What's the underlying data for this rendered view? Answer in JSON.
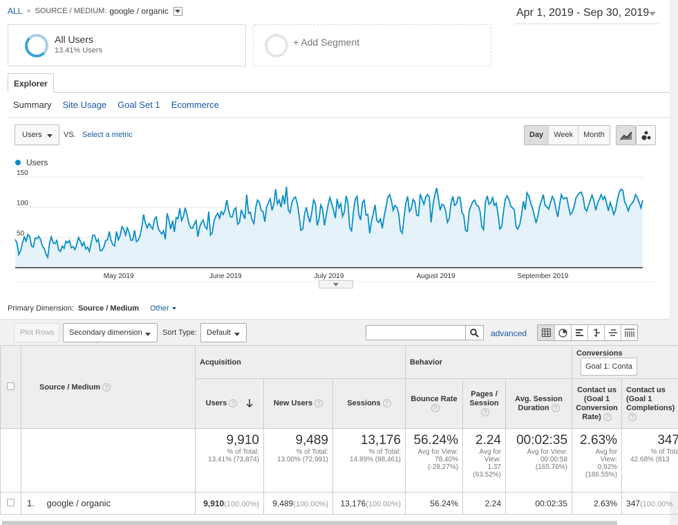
{
  "breadcrumb": {
    "all": "ALL",
    "separator": "»",
    "dimension": "SOURCE / MEDIUM:",
    "value": "google / organic"
  },
  "date_range": "Apr 1, 2019 - Sep 30, 2019",
  "segments": [
    {
      "title": "All Users",
      "subtitle": "13.41% Users"
    },
    {
      "title": "+ Add Segment"
    }
  ],
  "tabs": {
    "explorer": "Explorer"
  },
  "subtabs": [
    "Summary",
    "Site Usage",
    "Goal Set 1",
    "Ecommerce"
  ],
  "metric": {
    "selected": "Users",
    "vs": "VS.",
    "select_metric": "Select a metric"
  },
  "period_buttons": [
    "Day",
    "Week",
    "Month"
  ],
  "icons": {
    "line_chart": "line-chart-icon",
    "motion_chart": "motion-chart-icon",
    "search": "search-icon",
    "views": [
      "data-table-icon",
      "pie-chart-icon",
      "performance-bar-icon",
      "comparison-icon",
      "term-cloud-icon",
      "pivot-icon"
    ]
  },
  "colors": {
    "series": "#058dc7",
    "fill": "#e6f2f9",
    "link": "#1a57a8"
  },
  "chart_data": {
    "type": "area",
    "title": "",
    "legend": [
      "Users"
    ],
    "xlabel": "",
    "ylabel": "",
    "x_start": "2019-04-01",
    "x_end": "2019-09-30",
    "x_ticks": [
      {
        "label": "May 2019",
        "date": "2019-05-01"
      },
      {
        "label": "June 2019",
        "date": "2019-06-01"
      },
      {
        "label": "July 2019",
        "date": "2019-07-01"
      },
      {
        "label": "August 2019",
        "date": "2019-08-01"
      },
      {
        "label": "September 2019",
        "date": "2019-09-01"
      }
    ],
    "y_ticks": [
      50,
      100,
      150
    ],
    "ylim": [
      0,
      150
    ],
    "series": [
      {
        "name": "Users",
        "values": [
          47,
          41,
          22,
          28,
          41,
          51,
          44,
          55,
          52,
          36,
          34,
          49,
          48,
          52,
          47,
          36,
          32,
          23,
          17,
          41,
          51,
          41,
          40,
          45,
          30,
          27,
          36,
          32,
          44,
          41,
          45,
          33,
          35,
          30,
          38,
          50,
          44,
          36,
          42,
          31,
          34,
          27,
          41,
          54,
          53,
          43,
          47,
          28,
          29,
          34,
          45,
          46,
          60,
          45,
          38,
          36,
          60,
          46,
          53,
          68,
          64,
          54,
          66,
          58,
          45,
          46,
          62,
          43,
          45,
          53,
          67,
          88,
          74,
          66,
          73,
          68,
          64,
          80,
          84,
          66,
          60,
          56,
          61,
          47,
          90,
          79,
          64,
          78,
          59,
          83,
          81,
          98,
          78,
          85,
          99,
          88,
          74,
          66,
          65,
          72,
          78,
          51,
          67,
          75,
          79,
          68,
          64,
          93,
          54,
          58,
          78,
          86,
          90,
          82,
          93,
          88,
          95,
          112,
          95,
          84,
          84,
          95,
          99,
          72,
          75,
          96,
          88,
          81,
          121,
          90,
          92,
          79,
          73,
          99,
          112,
          108,
          95,
          93,
          76,
          100,
          108,
          114,
          95,
          105,
          130,
          106,
          112,
          100,
          120,
          105,
          134,
          96,
          91,
          108,
          115,
          117,
          106,
          86,
          62,
          64,
          89,
          100,
          85,
          75,
          92,
          112,
          106,
          70,
          81,
          104,
          97,
          70,
          87,
          104,
          116,
          106,
          96,
          82,
          114,
          99,
          106,
          85,
          92,
          119,
          107,
          66,
          61,
          92,
          113,
          118,
          88,
          79,
          108,
          112,
          87,
          88,
          57,
          77,
          90,
          104,
          78,
          75,
          81,
          65,
          85,
          100,
          116,
          121,
          111,
          95,
          103,
          100,
          91,
          62,
          57,
          83,
          107,
          118,
          93,
          98,
          113,
          109,
          87,
          86,
          122,
          113,
          105,
          117,
          121,
          117,
          75,
          104,
          120,
          132,
          115,
          95,
          105,
          103,
          94,
          75,
          81,
          107,
          118,
          103,
          106,
          117,
          116,
          92,
          87,
          62,
          60,
          93,
          102,
          109,
          112,
          104,
          102,
          94,
          68,
          63,
          108,
          119,
          105,
          108,
          116,
          103,
          107,
          88,
          64,
          68,
          93,
          113,
          119,
          113,
          102,
          99,
          96,
          67,
          64,
          72,
          88,
          110,
          96,
          124,
          119,
          107,
          99,
          87,
          74,
          85,
          102,
          111,
          121,
          103,
          101,
          97,
          108,
          118,
          112,
          97,
          84,
          104,
          121,
          114,
          115,
          116,
          101,
          88,
          92,
          101,
          115,
          120,
          124,
          125,
          117,
          98,
          94,
          103,
          112,
          120,
          111,
          95,
          107,
          113,
          121,
          113,
          118,
          107,
          94,
          108,
          99,
          88,
          96,
          113,
          125,
          130,
          128,
          109,
          103,
          94,
          103,
          106,
          111,
          121,
          116,
          108,
          99,
          112
        ]
      }
    ]
  },
  "primary_dimension": {
    "label": "Primary Dimension:",
    "value": "Source / Medium",
    "other": "Other"
  },
  "toolbar": {
    "plot_rows": "Plot Rows",
    "secondary": "Secondary dimension",
    "sort_label": "Sort Type:",
    "sort_value": "Default",
    "search_value": "",
    "advanced": "advanced"
  },
  "table": {
    "dim_header": "Source / Medium",
    "groups": {
      "acquisition": "Acquisition",
      "behavior": "Behavior",
      "conversions": "Conversions",
      "goal_select": "Goal 1: Conta"
    },
    "columns": [
      "Users",
      "New Users",
      "Sessions",
      "Bounce Rate",
      "Pages / Session",
      "Avg. Session Duration",
      "Contact us (Goal 1 Conversion Rate)",
      "Contact us (Goal 1 Completions)"
    ],
    "totals": [
      {
        "big": "9,910",
        "sub1": "% of Total:",
        "sub2": "13.41% (73,874)"
      },
      {
        "big": "9,489",
        "sub1": "% of Total:",
        "sub2": "13.00% (72,991)"
      },
      {
        "big": "13,176",
        "sub1": "% of Total:",
        "sub2": "14.89% (88,461)"
      },
      {
        "big": "56.24%",
        "sub1": "Avg for View:",
        "sub2": "78.40%",
        "sub3": "(-28.27%)"
      },
      {
        "big": "2.24",
        "sub1": "Avg for",
        "sub2": "View:",
        "sub3": "1.37",
        "sub4": "(63.52%)"
      },
      {
        "big": "00:02:35",
        "sub1": "Avg for View:",
        "sub2": "00:00:58",
        "sub3": "(165.76%)"
      },
      {
        "big": "2.63%",
        "sub1": "Avg for",
        "sub2": "View:",
        "sub3": "0.92%",
        "sub4": "(186.55%)"
      },
      {
        "big": "347",
        "sub1": "% of Tota",
        "sub2": "42.68% (813"
      }
    ],
    "rows": [
      {
        "index": "1.",
        "name": "google / organic",
        "users": "9,910",
        "users_pct": "(100.00%)",
        "new_users": "9,489",
        "new_users_pct": "(100.00%)",
        "sessions": "13,176",
        "sessions_pct": "(100.00%)",
        "bounce": "56.24%",
        "pages": "2.24",
        "duration": "00:02:35",
        "conv_rate": "2.63%",
        "completions": "347",
        "completions_pct": "(100.00%"
      }
    ]
  }
}
